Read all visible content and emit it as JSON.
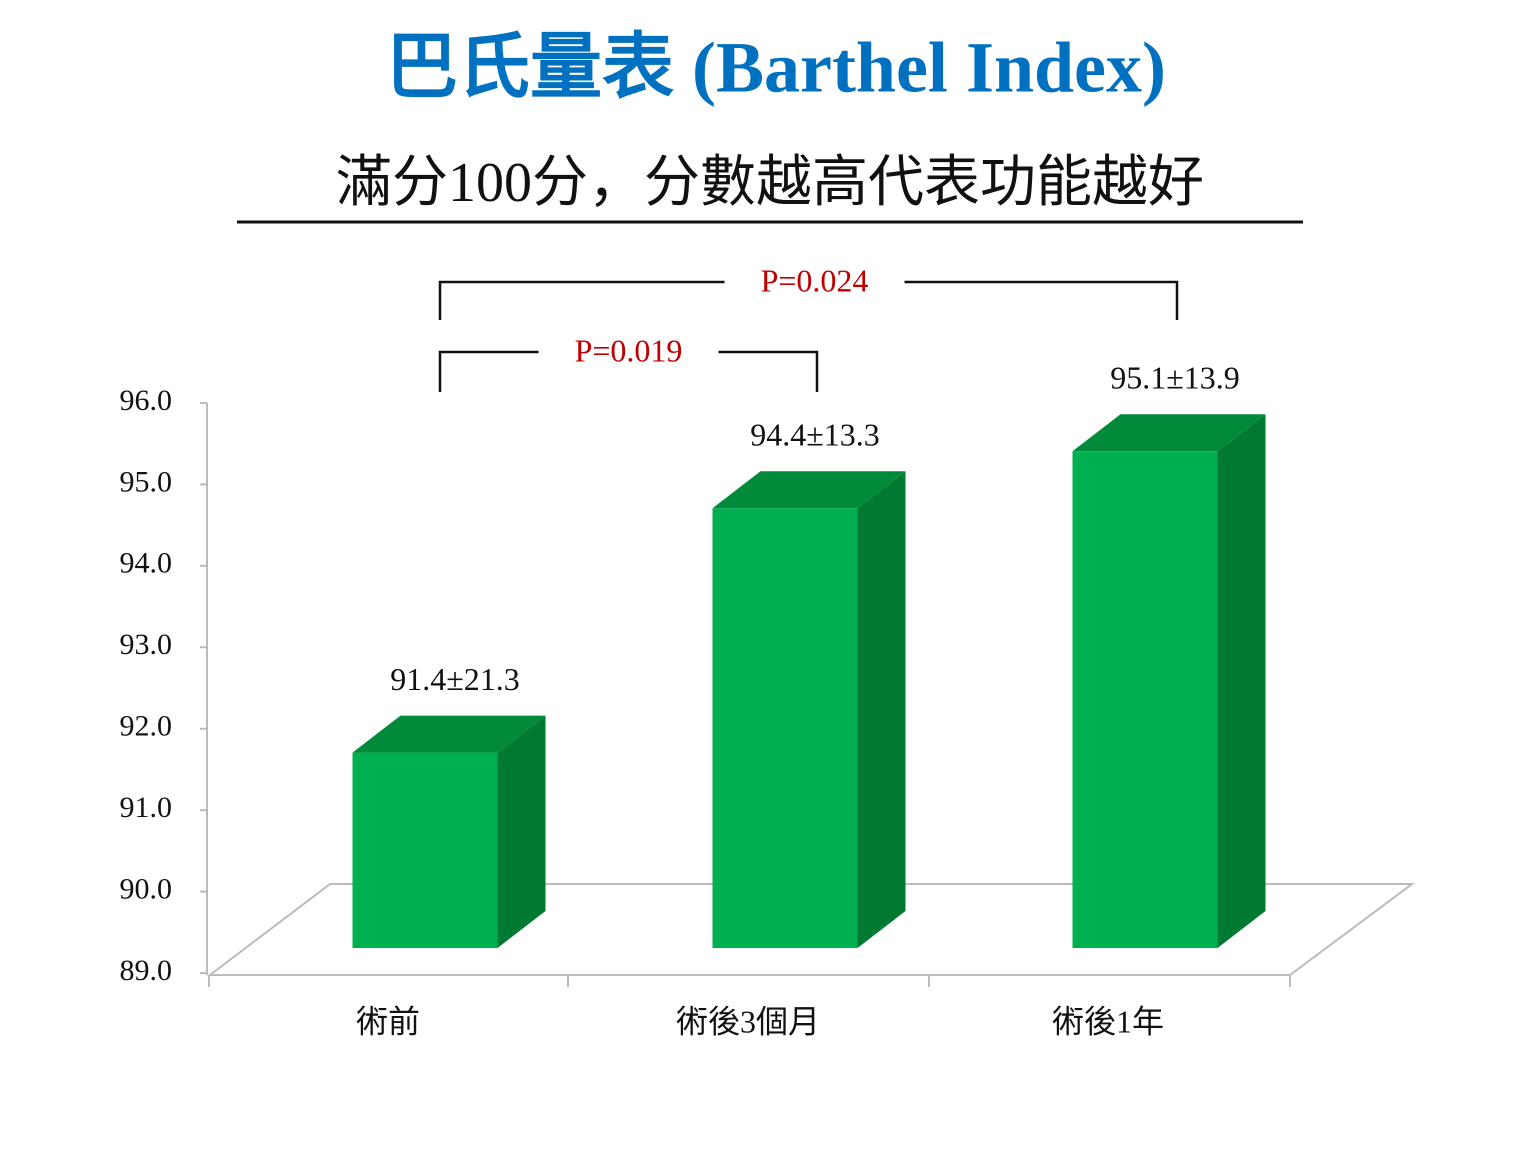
{
  "chart_data": {
    "type": "bar3d",
    "title": "巴氏量表 (Barthel Index)",
    "subtitle": "滿分100分，分數越高代表功能越好",
    "categories": [
      "術前",
      "術後3個月",
      "術後1年"
    ],
    "values": [
      91.4,
      94.4,
      95.1
    ],
    "value_labels": [
      "91.4±21.3",
      "94.4±13.3",
      "95.1±13.9"
    ],
    "color": "#00b050",
    "side_color": "#007a33",
    "top_color": "#008a3a",
    "ylim": [
      89,
      96
    ],
    "yticks": [
      {
        "value": 89,
        "label": "89.0"
      },
      {
        "value": 90,
        "label": "90.0"
      },
      {
        "value": 91,
        "label": "91.0"
      },
      {
        "value": 92,
        "label": "92.0"
      },
      {
        "value": 93,
        "label": "93.0"
      },
      {
        "value": 94,
        "label": "94.0"
      },
      {
        "value": 95,
        "label": "95.0"
      },
      {
        "value": 96,
        "label": "96.0"
      }
    ],
    "annotations": [
      {
        "text": "P=0.019"
      },
      {
        "text": "P=0.024"
      }
    ]
  }
}
